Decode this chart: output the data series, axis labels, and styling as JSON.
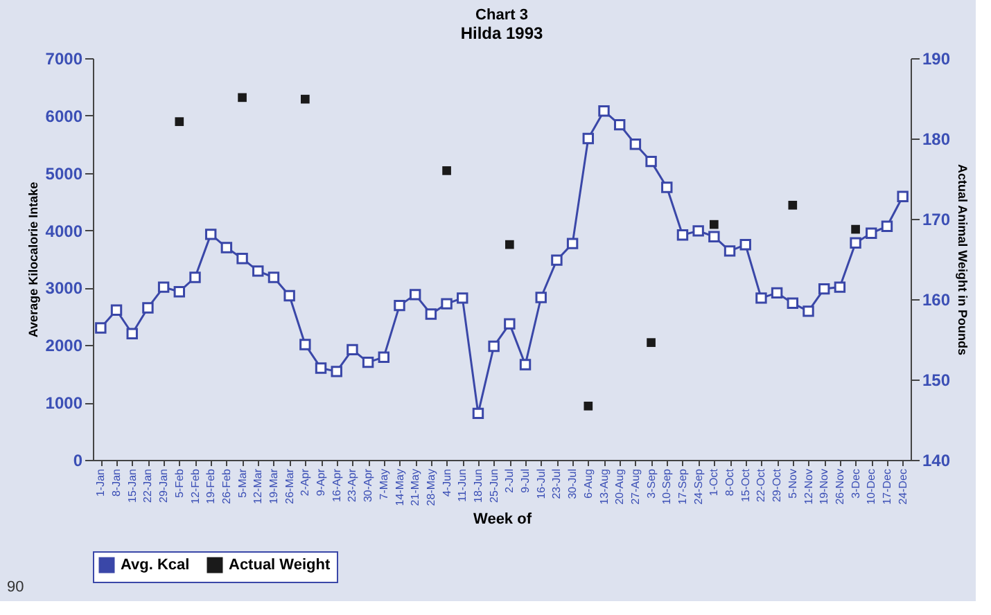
{
  "chart_data": {
    "type": "line",
    "title": "Chart 3",
    "subtitle": "Hilda 1993",
    "xlabel": "Week of",
    "ylabel": "Average Kilocalorie Intake",
    "y2label": "Actual Animal Weight in Pounds",
    "categories": [
      "1-Jan",
      "8-Jan",
      "15-Jan",
      "22-Jan",
      "29-Jan",
      "5-Feb",
      "12-Feb",
      "19-Feb",
      "26-Feb",
      "5-Mar",
      "12-Mar",
      "19-Mar",
      "26-Mar",
      "2-Apr",
      "9-Apr",
      "16-Apr",
      "23-Apr",
      "30-Apr",
      "7-May",
      "14-May",
      "21-May",
      "28-May",
      "4-Jun",
      "11-Jun",
      "18-Jun",
      "25-Jun",
      "2-Jul",
      "9-Jul",
      "16-Jul",
      "23-Jul",
      "30-Jul",
      "6-Aug",
      "13-Aug",
      "20-Aug",
      "27-Aug",
      "3-Sep",
      "10-Sep",
      "17-Sep",
      "24-Sep",
      "1-Oct",
      "8-Oct",
      "15-Oct",
      "22-Oct",
      "29-Oct",
      "5-Nov",
      "12-Nov",
      "19-Nov",
      "26-Nov",
      "3-Dec",
      "10-Dec",
      "17-Dec",
      "24-Dec"
    ],
    "series": [
      {
        "name": "Avg. Kcal",
        "marker": "square",
        "color": "#3a47a8",
        "values": [
          2300,
          2610,
          2200,
          2650,
          3010,
          2930,
          3180,
          3930,
          3700,
          3510,
          3290,
          3180,
          2860,
          2010,
          1600,
          1540,
          1920,
          1700,
          1790,
          2690,
          2880,
          2540,
          2720,
          2820,
          810,
          1980,
          2370,
          1660,
          2830,
          3480,
          3770,
          5600,
          6080,
          5840,
          5500,
          5200,
          4750,
          3920,
          3990,
          3890,
          3640,
          3750,
          2820,
          2910,
          2730,
          2590,
          2980,
          3010,
          3780,
          3950,
          4070,
          4590
        ]
      },
      {
        "name": "Actual Weight",
        "type": "scatter",
        "marker": "square",
        "axis": "y2",
        "color": "#1a1a1a",
        "x": [
          "5-Feb",
          "5-Mar",
          "2-Apr",
          "4-Jun",
          "2-Jul",
          "6-Aug",
          "3-Sep",
          "1-Oct",
          "5-Nov",
          "3-Dec"
        ],
        "values": [
          182.1,
          185.1,
          184.9,
          176.0,
          166.8,
          146.7,
          154.6,
          169.3,
          171.7,
          168.7
        ]
      }
    ],
    "ylim": [
      0,
      7000
    ],
    "yticks": [
      0,
      1000,
      2000,
      3000,
      4000,
      5000,
      6000,
      7000
    ],
    "y2lim": [
      140,
      190
    ],
    "y2ticks": [
      140,
      150,
      160,
      170,
      180,
      190
    ],
    "grid": false,
    "legend": "bottom",
    "annotations": [
      "90"
    ]
  }
}
